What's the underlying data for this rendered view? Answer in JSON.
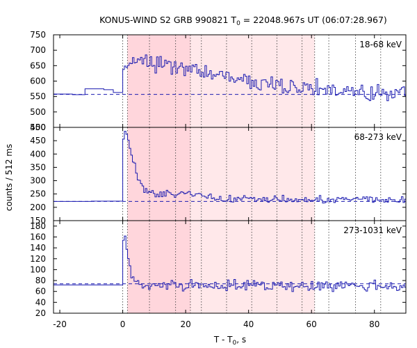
{
  "chart_data": {
    "type": "line",
    "subtype": "step-histogram",
    "title": {
      "main": "KONUS-WIND S2 GRB 990821 T",
      "sub": "0",
      "rest": " = 22048.967s UT (06:07:28.967)"
    },
    "xlabel": {
      "main": "T - T",
      "sub": "0",
      "rest": ", s"
    },
    "ylabel": "counts / 512 ms",
    "xlim": [
      -22,
      90
    ],
    "xticks": [
      -20,
      0,
      20,
      40,
      60,
      80
    ],
    "bin_width_s": 0.512,
    "shaded_interval": [
      1.5,
      61.0
    ],
    "inner_shaded_interval": [
      1.5,
      21.5
    ],
    "vertical_dotted_lines": [
      0,
      1.5,
      8.5,
      16.8,
      21.5,
      25,
      33,
      41,
      49,
      57,
      61,
      65.5,
      74,
      82
    ],
    "colors": {
      "series": "#1a1ab0",
      "background_line": "#1a1ab0",
      "shade_outer": "#ffe8ea",
      "shade_inner": "#ffd6dc",
      "frame": "#000000",
      "dotted": "#444444"
    },
    "panels": [
      {
        "band": "18-68 keV",
        "ylim": [
          450,
          750
        ],
        "yticks": [
          450,
          500,
          550,
          600,
          650,
          700,
          750
        ],
        "background": 557,
        "pre_burst": [
          {
            "x": -22,
            "y": 558
          },
          {
            "x": -16,
            "y": 556
          },
          {
            "x": -12,
            "y": 575
          },
          {
            "x": -6,
            "y": 572
          },
          {
            "x": -3,
            "y": 563
          },
          {
            "x": 0,
            "y": 558
          }
        ],
        "profile": [
          {
            "x": 0,
            "y": 640
          },
          {
            "x": 2,
            "y": 655
          },
          {
            "x": 5,
            "y": 665
          },
          {
            "x": 10,
            "y": 655
          },
          {
            "x": 20,
            "y": 638
          },
          {
            "x": 30,
            "y": 622
          },
          {
            "x": 40,
            "y": 600
          },
          {
            "x": 50,
            "y": 588
          },
          {
            "x": 60,
            "y": 580
          },
          {
            "x": 70,
            "y": 566
          },
          {
            "x": 80,
            "y": 562
          },
          {
            "x": 90,
            "y": 560
          }
        ],
        "noise": 19
      },
      {
        "band": "68-273 keV",
        "ylim": [
          150,
          500
        ],
        "yticks": [
          150,
          200,
          250,
          300,
          350,
          400,
          450,
          500
        ],
        "background": 222,
        "pre_burst": [
          {
            "x": -22,
            "y": 222
          },
          {
            "x": -10,
            "y": 223
          },
          {
            "x": 0,
            "y": 223
          }
        ],
        "profile": [
          {
            "x": 0,
            "y": 420
          },
          {
            "x": 0.5,
            "y": 488
          },
          {
            "x": 1.5,
            "y": 470
          },
          {
            "x": 3,
            "y": 385
          },
          {
            "x": 5,
            "y": 305
          },
          {
            "x": 7,
            "y": 265
          },
          {
            "x": 10,
            "y": 245
          },
          {
            "x": 20,
            "y": 255
          },
          {
            "x": 25,
            "y": 250
          },
          {
            "x": 30,
            "y": 232
          },
          {
            "x": 40,
            "y": 232
          },
          {
            "x": 60,
            "y": 226
          },
          {
            "x": 75,
            "y": 232
          },
          {
            "x": 90,
            "y": 225
          }
        ],
        "noise": 9
      },
      {
        "band": "273-1031 keV",
        "ylim": [
          20,
          190
        ],
        "yticks": [
          20,
          40,
          60,
          80,
          100,
          120,
          140,
          160,
          180
        ],
        "background": 74,
        "pre_burst": [
          {
            "x": -22,
            "y": 72
          },
          {
            "x": 0,
            "y": 72
          }
        ],
        "profile": [
          {
            "x": 0,
            "y": 135
          },
          {
            "x": 0.5,
            "y": 172
          },
          {
            "x": 1,
            "y": 150
          },
          {
            "x": 2,
            "y": 110
          },
          {
            "x": 3,
            "y": 85
          },
          {
            "x": 5,
            "y": 72
          },
          {
            "x": 90,
            "y": 70
          }
        ],
        "noise": 7.5
      }
    ]
  }
}
